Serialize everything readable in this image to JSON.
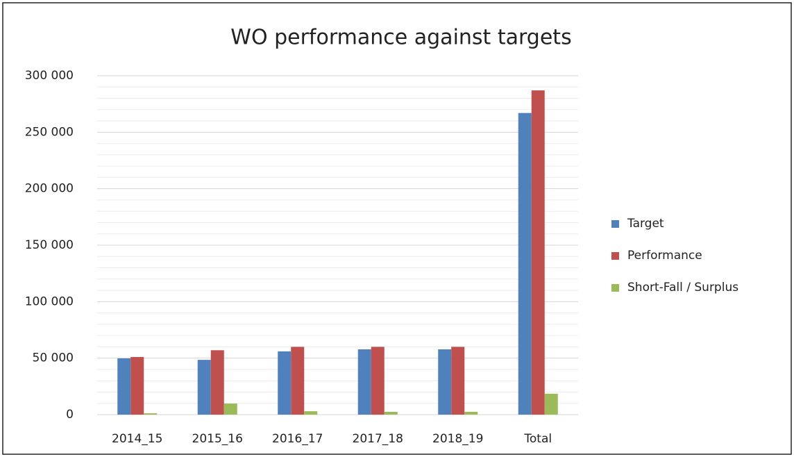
{
  "chart_data": {
    "type": "bar",
    "title": "WO performance against targets",
    "categories": [
      "2014_15",
      "2015_16",
      "2016_17",
      "2017_18",
      "2018_19",
      "Total"
    ],
    "series": [
      {
        "name": "Target",
        "color": "#4f81bd",
        "values": [
          49800,
          48500,
          56000,
          57800,
          57800,
          267000
        ]
      },
      {
        "name": "Performance",
        "color": "#c0504d",
        "values": [
          51000,
          57000,
          60000,
          60000,
          60000,
          287000
        ]
      },
      {
        "name": "Short-Fall / Surplus",
        "color": "#9bbb59",
        "values": [
          1200,
          9800,
          3000,
          2500,
          2500,
          18500
        ]
      }
    ],
    "ylim": [
      0,
      300000
    ],
    "yticks": [
      {
        "value": 0,
        "label": "0"
      },
      {
        "value": 50000,
        "label": "50 000"
      },
      {
        "value": 100000,
        "label": "100 000"
      },
      {
        "value": 150000,
        "label": "150 000"
      },
      {
        "value": 200000,
        "label": "200 000"
      },
      {
        "value": 250000,
        "label": "250 000"
      },
      {
        "value": 300000,
        "label": "300 000"
      }
    ],
    "minor_yticks": [
      10000,
      20000,
      30000,
      40000,
      60000,
      70000,
      80000,
      90000,
      110000,
      120000,
      130000,
      140000,
      160000,
      170000,
      180000,
      190000,
      210000,
      220000,
      230000,
      240000,
      260000,
      270000,
      280000,
      290000
    ],
    "grid": true,
    "legend": "right"
  }
}
